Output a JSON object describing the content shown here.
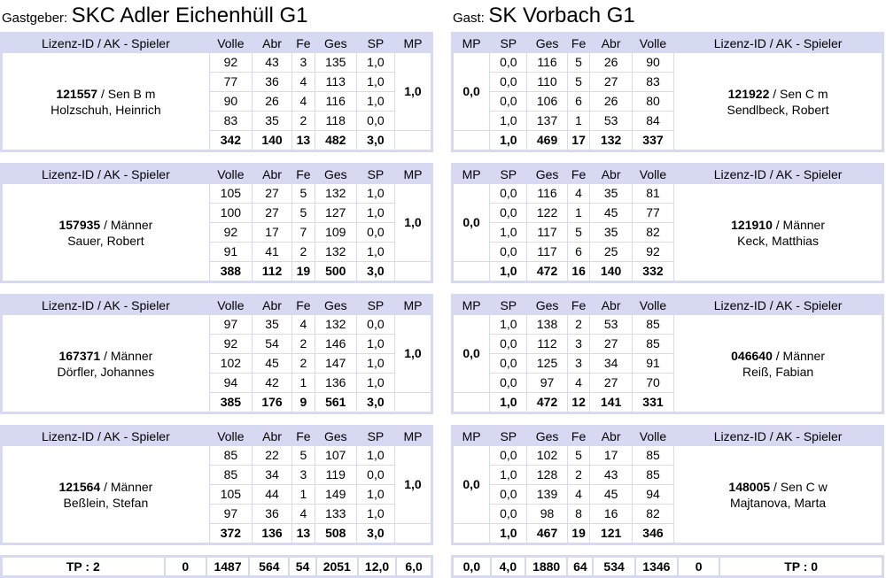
{
  "home": {
    "label": "Gastgeber:",
    "name": "SKC Adler Eichenhüll G1"
  },
  "guest": {
    "label": "Gast:",
    "name": "SK Vorbach G1"
  },
  "headers": {
    "player": "Lizenz-ID / AK - Spieler",
    "volle": "Volle",
    "abr": "Abr",
    "fe": "Fe",
    "ges": "Ges",
    "sp": "SP",
    "mp": "MP"
  },
  "matches": [
    {
      "home": {
        "id": "121557",
        "class": " / Sen B m",
        "name": "Holzschuh, Heinrich",
        "rows": [
          [
            "92",
            "43",
            "3",
            "135",
            "1,0"
          ],
          [
            "77",
            "36",
            "4",
            "113",
            "1,0"
          ],
          [
            "90",
            "26",
            "4",
            "116",
            "1,0"
          ],
          [
            "83",
            "35",
            "2",
            "118",
            "0,0"
          ]
        ],
        "sum": [
          "342",
          "140",
          "13",
          "482",
          "3,0"
        ],
        "mp": "1,0"
      },
      "guest": {
        "id": "121922",
        "class": " / Sen C m",
        "name": "Sendlbeck, Robert",
        "rows": [
          [
            "0,0",
            "116",
            "5",
            "26",
            "90"
          ],
          [
            "0,0",
            "110",
            "5",
            "27",
            "83"
          ],
          [
            "0,0",
            "106",
            "6",
            "26",
            "80"
          ],
          [
            "1,0",
            "137",
            "1",
            "53",
            "84"
          ]
        ],
        "sum": [
          "1,0",
          "469",
          "17",
          "132",
          "337"
        ],
        "mp": "0,0"
      }
    },
    {
      "home": {
        "id": "157935",
        "class": " / Männer",
        "name": "Sauer, Robert",
        "rows": [
          [
            "105",
            "27",
            "5",
            "132",
            "1,0"
          ],
          [
            "100",
            "27",
            "5",
            "127",
            "1,0"
          ],
          [
            "92",
            "17",
            "7",
            "109",
            "0,0"
          ],
          [
            "91",
            "41",
            "2",
            "132",
            "1,0"
          ]
        ],
        "sum": [
          "388",
          "112",
          "19",
          "500",
          "3,0"
        ],
        "mp": "1,0"
      },
      "guest": {
        "id": "121910",
        "class": " / Männer",
        "name": "Keck, Matthias",
        "rows": [
          [
            "0,0",
            "116",
            "4",
            "35",
            "81"
          ],
          [
            "0,0",
            "122",
            "1",
            "45",
            "77"
          ],
          [
            "1,0",
            "117",
            "5",
            "35",
            "82"
          ],
          [
            "0,0",
            "117",
            "6",
            "25",
            "92"
          ]
        ],
        "sum": [
          "1,0",
          "472",
          "16",
          "140",
          "332"
        ],
        "mp": "0,0"
      }
    },
    {
      "home": {
        "id": "167371",
        "class": " / Männer",
        "name": "Dörfler, Johannes",
        "rows": [
          [
            "97",
            "35",
            "4",
            "132",
            "0,0"
          ],
          [
            "92",
            "54",
            "2",
            "146",
            "1,0"
          ],
          [
            "102",
            "45",
            "2",
            "147",
            "1,0"
          ],
          [
            "94",
            "42",
            "1",
            "136",
            "1,0"
          ]
        ],
        "sum": [
          "385",
          "176",
          "9",
          "561",
          "3,0"
        ],
        "mp": "1,0"
      },
      "guest": {
        "id": "046640",
        "class": " / Männer",
        "name": "Reiß, Fabian",
        "rows": [
          [
            "1,0",
            "138",
            "2",
            "53",
            "85"
          ],
          [
            "0,0",
            "112",
            "3",
            "27",
            "85"
          ],
          [
            "0,0",
            "125",
            "3",
            "34",
            "91"
          ],
          [
            "0,0",
            "97",
            "4",
            "27",
            "70"
          ]
        ],
        "sum": [
          "1,0",
          "472",
          "12",
          "141",
          "331"
        ],
        "mp": "0,0"
      }
    },
    {
      "home": {
        "id": "121564",
        "class": " / Männer",
        "name": "Beßlein, Stefan",
        "rows": [
          [
            "85",
            "22",
            "5",
            "107",
            "1,0"
          ],
          [
            "85",
            "34",
            "3",
            "119",
            "0,0"
          ],
          [
            "105",
            "44",
            "1",
            "149",
            "1,0"
          ],
          [
            "97",
            "36",
            "4",
            "133",
            "1,0"
          ]
        ],
        "sum": [
          "372",
          "136",
          "13",
          "508",
          "3,0"
        ],
        "mp": "1,0"
      },
      "guest": {
        "id": "148005",
        "class": " / Sen C w",
        "name": "Majtanova, Marta",
        "rows": [
          [
            "0,0",
            "102",
            "5",
            "17",
            "85"
          ],
          [
            "1,0",
            "128",
            "2",
            "43",
            "85"
          ],
          [
            "0,0",
            "139",
            "4",
            "45",
            "94"
          ],
          [
            "0,0",
            "98",
            "8",
            "16",
            "82"
          ]
        ],
        "sum": [
          "1,0",
          "467",
          "19",
          "121",
          "346"
        ],
        "mp": "0,0"
      }
    }
  ],
  "totals": {
    "home": [
      "TP : 2",
      "0",
      "1487",
      "564",
      "54",
      "2051",
      "12,0",
      "6,0"
    ],
    "guest": [
      "0,0",
      "4,0",
      "1880",
      "64",
      "534",
      "1346",
      "0",
      "TP : 0"
    ]
  },
  "colors": {
    "border": "#d7d8f1",
    "header_bg": "#d7d8f1"
  }
}
